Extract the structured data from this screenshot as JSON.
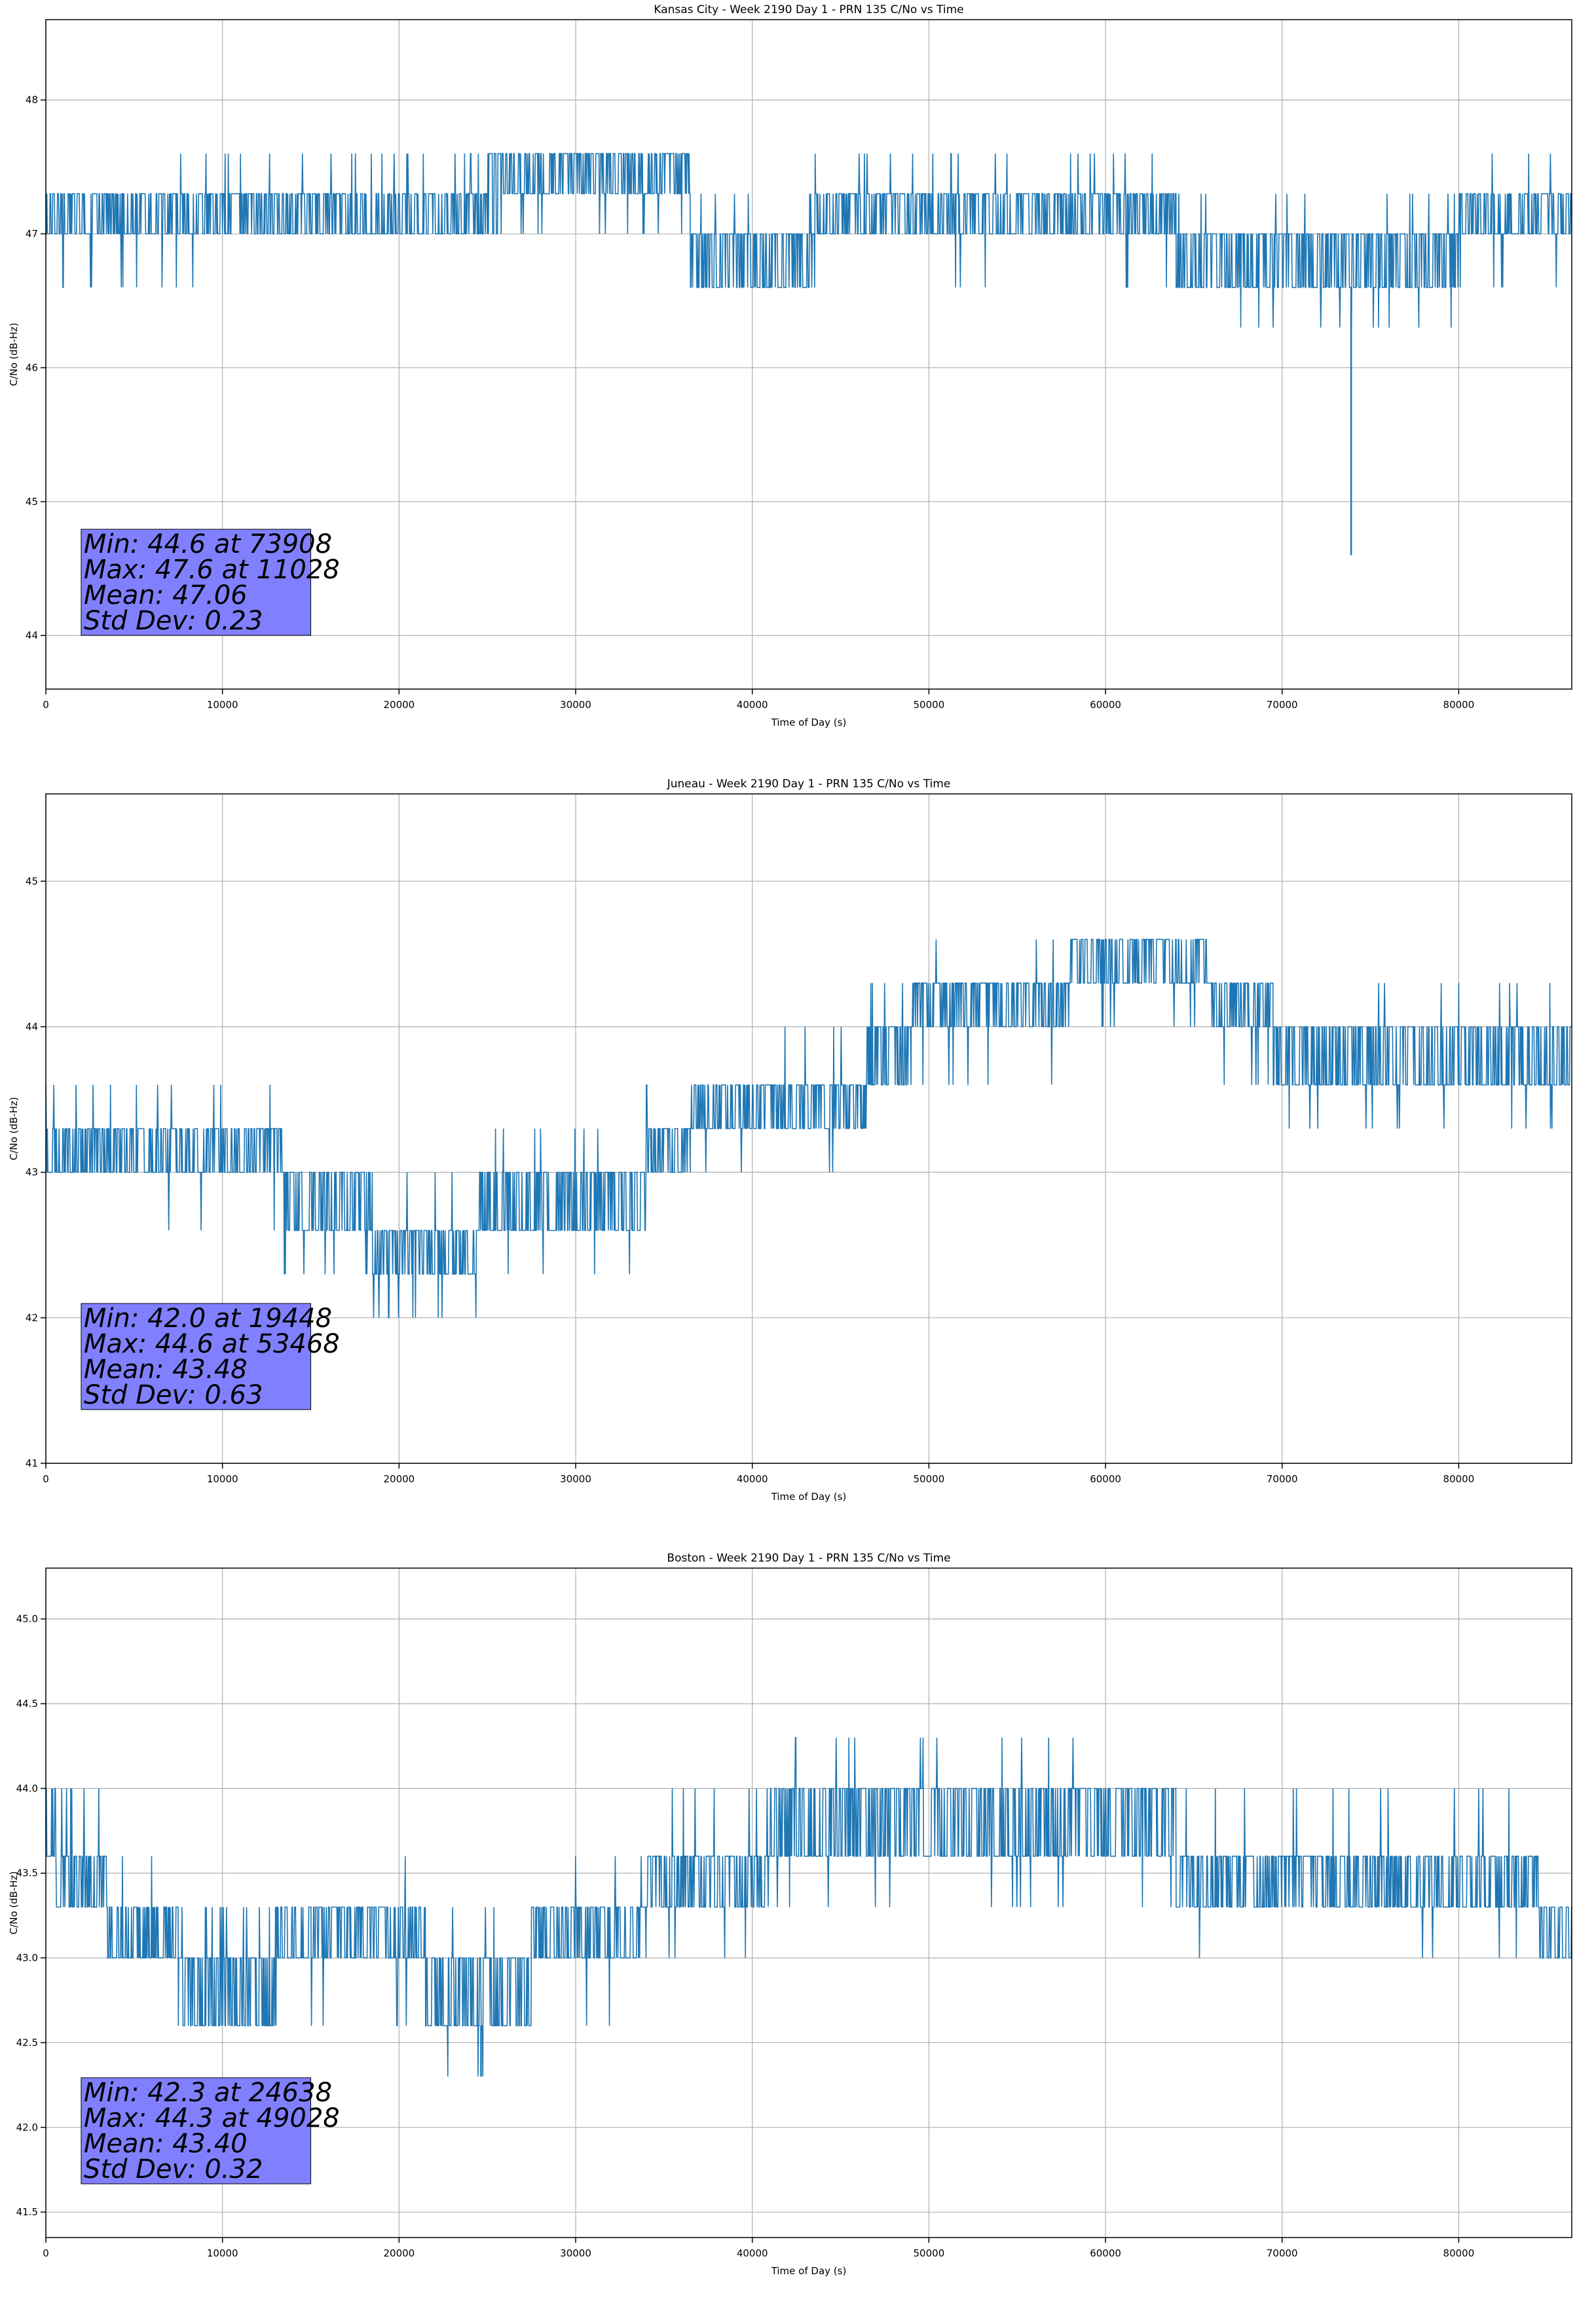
{
  "colors": {
    "line": "#1f77b4",
    "grid": "#b0b0b0",
    "stats_box": "#8080ff",
    "axes": "#000000"
  },
  "chart_data": [
    {
      "type": "line",
      "title": "Kansas City - Week 2190 Day 1 - PRN 135 C/No vs Time",
      "xlabel": "Time of Day (s)",
      "ylabel": "C/No (dB-Hz)",
      "xlim": [
        0,
        86400
      ],
      "ylim": [
        43.6,
        48.6
      ],
      "xticks": [
        0,
        10000,
        20000,
        30000,
        40000,
        50000,
        60000,
        70000,
        80000
      ],
      "xtick_labels": [
        "0",
        "10000",
        "20000",
        "30000",
        "40000",
        "50000",
        "60000",
        "70000",
        "80000"
      ],
      "yticks": [
        44,
        45,
        46,
        47,
        48
      ],
      "ytick_labels": [
        "44",
        "45",
        "46",
        "47",
        "48"
      ],
      "grid": true,
      "stats_location": "lower-left",
      "stats": [
        "Min: 44.6 at 73908",
        "Max: 47.6 at 11028",
        "Mean: 47.06",
        "Std Dev: 0.23"
      ],
      "segments": [
        {
          "x0": 0,
          "x1": 2500,
          "levels": [
            47.0,
            47.3
          ],
          "spikes": [
            46.6
          ]
        },
        {
          "x0": 2500,
          "x1": 10000,
          "levels": [
            47.0,
            47.3
          ],
          "spikes": [
            46.6,
            46.6,
            47.6
          ]
        },
        {
          "x0": 10000,
          "x1": 25000,
          "levels": [
            47.0,
            47.3
          ],
          "spikes": [
            47.6
          ]
        },
        {
          "x0": 25000,
          "x1": 25800,
          "levels": [
            47.0,
            47.6
          ],
          "spikes": []
        },
        {
          "x0": 25800,
          "x1": 36500,
          "levels": [
            47.3,
            47.6
          ],
          "spikes": [
            47.0
          ]
        },
        {
          "x0": 36500,
          "x1": 43500,
          "levels": [
            46.6,
            47.0
          ],
          "spikes": [
            47.3
          ]
        },
        {
          "x0": 43500,
          "x1": 64000,
          "levels": [
            47.0,
            47.3
          ],
          "spikes": [
            46.6,
            47.6
          ]
        },
        {
          "x0": 64000,
          "x1": 80000,
          "levels": [
            46.6,
            47.0
          ],
          "spikes": [
            46.3,
            47.3
          ]
        },
        {
          "x0": 80000,
          "x1": 86400,
          "levels": [
            47.0,
            47.3
          ],
          "spikes": [
            47.6,
            46.6
          ]
        }
      ],
      "events": [
        [
          73908,
          44.6,
          46.6
        ]
      ]
    },
    {
      "type": "line",
      "title": "Juneau - Week 2190 Day 1 - PRN 135 C/No vs Time",
      "xlabel": "Time of Day (s)",
      "ylabel": "C/No (dB-Hz)",
      "xlim": [
        0,
        86400
      ],
      "ylim": [
        41.0,
        45.6
      ],
      "xticks": [
        0,
        10000,
        20000,
        30000,
        40000,
        50000,
        60000,
        70000,
        80000
      ],
      "xtick_labels": [
        "0",
        "10000",
        "20000",
        "30000",
        "40000",
        "50000",
        "60000",
        "70000",
        "80000"
      ],
      "yticks": [
        41,
        42,
        43,
        44,
        45
      ],
      "ytick_labels": [
        "41",
        "42",
        "43",
        "44",
        "45"
      ],
      "grid": true,
      "stats_location": "lower-left",
      "stats": [
        "Min: 42.0 at 19448",
        "Max: 44.6 at 53468",
        "Mean: 43.48",
        "Std Dev: 0.63"
      ],
      "segments": [
        {
          "x0": 0,
          "x1": 13500,
          "levels": [
            43.0,
            43.3
          ],
          "spikes": [
            42.6,
            43.6
          ]
        },
        {
          "x0": 13500,
          "x1": 18500,
          "levels": [
            42.6,
            43.0
          ],
          "spikes": [
            42.3
          ]
        },
        {
          "x0": 18500,
          "x1": 24500,
          "levels": [
            42.3,
            42.6
          ],
          "spikes": [
            42.0,
            43.0
          ]
        },
        {
          "x0": 24500,
          "x1": 34000,
          "levels": [
            42.6,
            43.0
          ],
          "spikes": [
            43.3,
            42.3
          ]
        },
        {
          "x0": 34000,
          "x1": 36500,
          "levels": [
            43.0,
            43.3
          ],
          "spikes": [
            43.6
          ]
        },
        {
          "x0": 36500,
          "x1": 40500,
          "levels": [
            43.3,
            43.6
          ],
          "spikes": [
            43.0
          ]
        },
        {
          "x0": 40500,
          "x1": 46500,
          "levels": [
            43.3,
            43.6
          ],
          "spikes": [
            44.0,
            43.0
          ]
        },
        {
          "x0": 46500,
          "x1": 49000,
          "levels": [
            43.6,
            44.0
          ],
          "spikes": [
            44.3
          ]
        },
        {
          "x0": 49000,
          "x1": 58000,
          "levels": [
            44.0,
            44.3
          ],
          "spikes": [
            44.6,
            43.6
          ]
        },
        {
          "x0": 58000,
          "x1": 66000,
          "levels": [
            44.3,
            44.6
          ],
          "spikes": [
            44.0
          ]
        },
        {
          "x0": 66000,
          "x1": 69500,
          "levels": [
            44.0,
            44.3
          ],
          "spikes": [
            43.6
          ]
        },
        {
          "x0": 69500,
          "x1": 86400,
          "levels": [
            43.6,
            44.0
          ],
          "spikes": [
            44.3,
            43.3
          ]
        }
      ],
      "events": []
    },
    {
      "type": "line",
      "title": "Boston - Week 2190 Day 1 - PRN 135 C/No vs Time",
      "xlabel": "Time of Day (s)",
      "ylabel": "C/No (dB-Hz)",
      "xlim": [
        0,
        86400
      ],
      "ylim": [
        41.35,
        45.3
      ],
      "xticks": [
        0,
        10000,
        20000,
        30000,
        40000,
        50000,
        60000,
        70000,
        80000
      ],
      "xtick_labels": [
        "0",
        "10000",
        "20000",
        "30000",
        "40000",
        "50000",
        "60000",
        "70000",
        "80000"
      ],
      "yticks": [
        41.5,
        42.0,
        42.5,
        43.0,
        43.5,
        44.0,
        44.5,
        45.0
      ],
      "ytick_labels": [
        "41.5",
        "42.0",
        "42.5",
        "43.0",
        "43.5",
        "44.0",
        "44.5",
        "45.0"
      ],
      "grid": true,
      "stats_location": "lower-left",
      "stats": [
        "Min: 42.3 at 24638",
        "Max: 44.3 at 49028",
        "Mean: 43.40",
        "Std Dev: 0.32"
      ],
      "segments": [
        {
          "x0": 0,
          "x1": 600,
          "levels": [
            43.6,
            44.0
          ],
          "spikes": []
        },
        {
          "x0": 600,
          "x1": 3500,
          "levels": [
            43.3,
            43.6
          ],
          "spikes": [
            44.0
          ]
        },
        {
          "x0": 3500,
          "x1": 7500,
          "levels": [
            43.0,
            43.3
          ],
          "spikes": [
            43.6
          ]
        },
        {
          "x0": 7500,
          "x1": 13000,
          "levels": [
            42.6,
            43.0
          ],
          "spikes": [
            43.3
          ]
        },
        {
          "x0": 13000,
          "x1": 21500,
          "levels": [
            43.0,
            43.3
          ],
          "spikes": [
            42.6,
            43.6
          ]
        },
        {
          "x0": 21500,
          "x1": 27500,
          "levels": [
            42.6,
            43.0
          ],
          "spikes": [
            43.3,
            42.3
          ]
        },
        {
          "x0": 27500,
          "x1": 34000,
          "levels": [
            43.0,
            43.3
          ],
          "spikes": [
            42.6,
            43.6
          ]
        },
        {
          "x0": 34000,
          "x1": 41000,
          "levels": [
            43.3,
            43.6
          ],
          "spikes": [
            44.0,
            43.0
          ]
        },
        {
          "x0": 41000,
          "x1": 59000,
          "levels": [
            43.6,
            44.0
          ],
          "spikes": [
            44.3,
            43.3
          ]
        },
        {
          "x0": 59000,
          "x1": 64000,
          "levels": [
            43.6,
            44.0
          ],
          "spikes": [
            43.3
          ]
        },
        {
          "x0": 64000,
          "x1": 84500,
          "levels": [
            43.3,
            43.6
          ],
          "spikes": [
            43.0,
            44.0
          ]
        },
        {
          "x0": 84500,
          "x1": 86400,
          "levels": [
            43.0,
            43.3
          ],
          "spikes": []
        }
      ],
      "events": [
        [
          24638,
          42.3,
          42.6
        ]
      ]
    }
  ]
}
